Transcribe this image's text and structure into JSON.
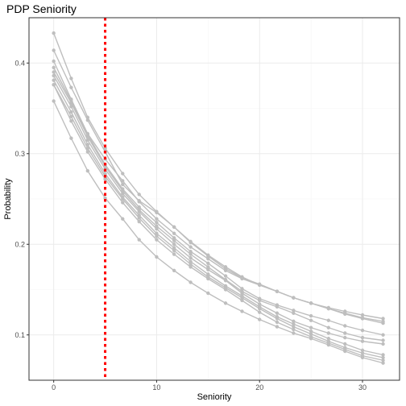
{
  "chart_data": {
    "type": "line",
    "title": "PDP Seniority",
    "xlabel": "Seniority",
    "ylabel": "Probability",
    "xlim": [
      -2.4,
      33.6
    ],
    "ylim": [
      0.05,
      0.45
    ],
    "xticks": [
      0,
      10,
      20,
      30
    ],
    "yticks": [
      0.1,
      0.2,
      0.3,
      0.4
    ],
    "xtick_labels": [
      "0",
      "10",
      "20",
      "30"
    ],
    "ytick_labels": [
      "0.1",
      "0.2",
      "0.3",
      "0.4"
    ],
    "grid": true,
    "legend": "none",
    "line_color": "#bebebe",
    "reference_line": {
      "x": 5,
      "style": "dotted",
      "color": "#ff0000"
    },
    "x": [
      0,
      1.7,
      3.3,
      5.0,
      6.7,
      8.3,
      10.0,
      11.7,
      13.3,
      15.0,
      16.7,
      18.3,
      20.0,
      21.7,
      23.3,
      25.0,
      26.7,
      28.3,
      30.0,
      32.0
    ],
    "series": [
      {
        "values": [
          0.433,
          0.383,
          0.34,
          0.306,
          0.278,
          0.255,
          0.236,
          0.219,
          0.203,
          0.188,
          0.175,
          0.164,
          0.155,
          0.148,
          0.141,
          0.135,
          0.13,
          0.126,
          0.122,
          0.118
        ]
      },
      {
        "values": [
          0.414,
          0.373,
          0.337,
          0.302,
          0.266,
          0.248,
          0.235,
          0.219,
          0.202,
          0.187,
          0.173,
          0.163,
          0.156,
          0.148,
          0.141,
          0.135,
          0.129,
          0.124,
          0.119,
          0.115
        ]
      },
      {
        "values": [
          0.402,
          0.36,
          0.322,
          0.294,
          0.27,
          0.247,
          0.228,
          0.212,
          0.197,
          0.184,
          0.171,
          0.162,
          0.155,
          0.148,
          0.141,
          0.135,
          0.129,
          0.123,
          0.118,
          0.113
        ]
      },
      {
        "values": [
          0.395,
          0.358,
          0.321,
          0.288,
          0.261,
          0.241,
          0.224,
          0.207,
          0.192,
          0.179,
          0.165,
          0.151,
          0.14,
          0.133,
          0.127,
          0.121,
          0.116,
          0.11,
          0.105,
          0.1
        ]
      },
      {
        "values": [
          0.39,
          0.356,
          0.319,
          0.286,
          0.259,
          0.238,
          0.22,
          0.204,
          0.189,
          0.175,
          0.161,
          0.148,
          0.138,
          0.131,
          0.124,
          0.116,
          0.108,
          0.102,
          0.097,
          0.094
        ]
      },
      {
        "values": [
          0.386,
          0.352,
          0.315,
          0.283,
          0.256,
          0.236,
          0.217,
          0.2,
          0.185,
          0.172,
          0.16,
          0.146,
          0.134,
          0.124,
          0.115,
          0.108,
          0.102,
          0.097,
          0.093,
          0.09
        ]
      },
      {
        "values": [
          0.381,
          0.346,
          0.31,
          0.278,
          0.252,
          0.232,
          0.212,
          0.196,
          0.181,
          0.167,
          0.154,
          0.143,
          0.131,
          0.12,
          0.112,
          0.104,
          0.096,
          0.09,
          0.083,
          0.078
        ]
      },
      {
        "values": [
          0.376,
          0.341,
          0.306,
          0.275,
          0.25,
          0.229,
          0.209,
          0.193,
          0.178,
          0.164,
          0.152,
          0.141,
          0.129,
          0.118,
          0.109,
          0.101,
          0.093,
          0.086,
          0.08,
          0.075
        ]
      },
      {
        "values": [
          0.376,
          0.336,
          0.302,
          0.272,
          0.246,
          0.225,
          0.205,
          0.189,
          0.175,
          0.162,
          0.15,
          0.138,
          0.125,
          0.114,
          0.106,
          0.098,
          0.091,
          0.084,
          0.077,
          0.072
        ]
      },
      {
        "values": [
          0.358,
          0.317,
          0.281,
          0.251,
          0.228,
          0.205,
          0.186,
          0.171,
          0.158,
          0.146,
          0.135,
          0.126,
          0.117,
          0.109,
          0.102,
          0.096,
          0.089,
          0.082,
          0.075,
          0.069
        ]
      }
    ]
  }
}
